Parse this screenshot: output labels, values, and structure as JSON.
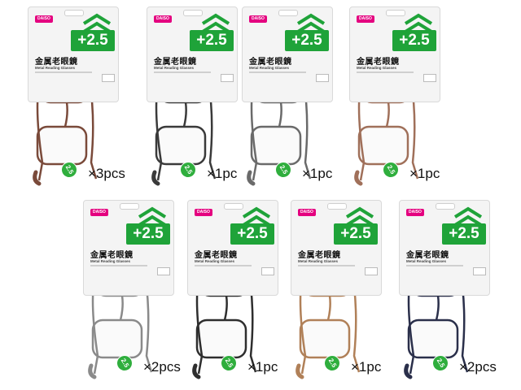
{
  "products": [
    {
      "power": "+2.5",
      "title": "金属老眼鏡",
      "subtitle": "Metal Reading Glasses",
      "brand": "DAISO",
      "badge": "2.5",
      "quantity": "×3pcs",
      "frame_color": "#7a4a3a"
    },
    {
      "power": "+2.5",
      "title": "金属老眼鏡",
      "subtitle": "Metal Reading Glasses",
      "brand": "DAISO",
      "badge": "2.5",
      "quantity": "×1pc",
      "frame_color": "#3a3a3a"
    },
    {
      "power": "+2.5",
      "title": "金属老眼鏡",
      "subtitle": "Metal Reading Glasses",
      "brand": "DAISO",
      "badge": "2.5",
      "quantity": "×1pc",
      "frame_color": "#6a6a6a"
    },
    {
      "power": "+2.5",
      "title": "金属老眼鏡",
      "subtitle": "Metal Reading Glasses",
      "brand": "DAISO",
      "badge": "2.5",
      "quantity": "×1pc",
      "frame_color": "#a0705a"
    },
    {
      "power": "+2.5",
      "title": "金属老眼鏡",
      "subtitle": "Metal Reading Glasses",
      "brand": "DAISO",
      "badge": "2.5",
      "quantity": "×2pcs",
      "frame_color": "#8a8a8a"
    },
    {
      "power": "+2.5",
      "title": "金属老眼鏡",
      "subtitle": "Metal Reading Glasses",
      "brand": "DAISO",
      "badge": "2.5",
      "quantity": "×1pc",
      "frame_color": "#2e2e2e"
    },
    {
      "power": "+2.5",
      "title": "金属老眼鏡",
      "subtitle": "Metal Reading Glasses",
      "brand": "DAISO",
      "badge": "2.5",
      "quantity": "×1pc",
      "frame_color": "#b08058"
    },
    {
      "power": "+2.5",
      "title": "金属老眼鏡",
      "subtitle": "Metal Reading Glasses",
      "brand": "DAISO",
      "badge": "2.5",
      "quantity": "×2pcs",
      "frame_color": "#2a2f4a"
    }
  ],
  "colors": {
    "power_label": "#1fa339",
    "badge": "#2fae3d",
    "brand": "#e4007f"
  }
}
